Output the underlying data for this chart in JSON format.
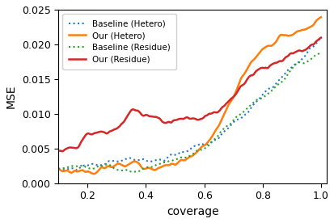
{
  "title": "",
  "xlabel": "coverage",
  "ylabel": "MSE",
  "xlim": [
    0.1,
    1.02
  ],
  "ylim": [
    0.0,
    0.025
  ],
  "yticks": [
    0.0,
    0.005,
    0.01,
    0.015,
    0.02,
    0.025
  ],
  "xticks": [
    0.2,
    0.4,
    0.6,
    0.8,
    1.0
  ],
  "legend": [
    "Baseline (Hetero)",
    "Our (Hetero)",
    "Baseline (Residue)",
    "Our (Residue)"
  ],
  "colors": [
    "#1f77d0",
    "#ff7f0e",
    "#2ca02c",
    "#d62728"
  ],
  "linestyles": [
    "dotted",
    "solid",
    "dotted",
    "solid"
  ],
  "linewidths": [
    1.5,
    1.8,
    1.5,
    1.8
  ],
  "figsize": [
    4.14,
    2.76
  ],
  "dpi": 100
}
